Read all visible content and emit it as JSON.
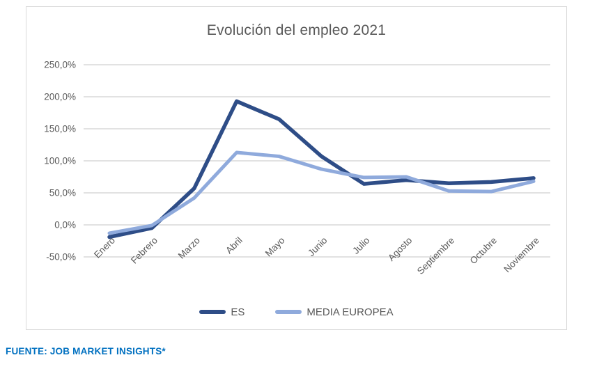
{
  "page": {
    "source_note": "FUENTE: JOB MARKET INSIGHTS*"
  },
  "chart_data": {
    "type": "line",
    "title": "Evolución del empleo 2021",
    "categories": [
      "Enero",
      "Febrero",
      "Marzo",
      "Abril",
      "Mayo",
      "Junio",
      "Julio",
      "Agosto",
      "Septiembre",
      "Octubre",
      "Noviembre"
    ],
    "series": [
      {
        "name": "ES",
        "color": "#2E4D87",
        "stroke_width": 5.5,
        "values": [
          -19,
          -5,
          57,
          193,
          165,
          107,
          64,
          70,
          65,
          67,
          73
        ]
      },
      {
        "name": "MEDIA EUROPEA",
        "color": "#8FAADC",
        "stroke_width": 5,
        "values": [
          -13,
          -1,
          42,
          113,
          107,
          87,
          74,
          75,
          53,
          52,
          68
        ]
      }
    ],
    "y_axis": {
      "min": -50,
      "max": 250,
      "step": 50,
      "unit": "%",
      "tick_labels": [
        "250,0%",
        "200,0%",
        "150,0%",
        "100,0%",
        "50,0%",
        "0,0%",
        "-50,0%"
      ]
    },
    "x_axis": {
      "label_rotation_deg": -45
    },
    "grid": true,
    "legend_position": "bottom",
    "colors": {
      "gridline": "#D9D9D9",
      "plot_border": "#D9D9D9",
      "axis_text": "#595959",
      "title_text": "#595959",
      "source_note_text": "#0070C0"
    }
  }
}
